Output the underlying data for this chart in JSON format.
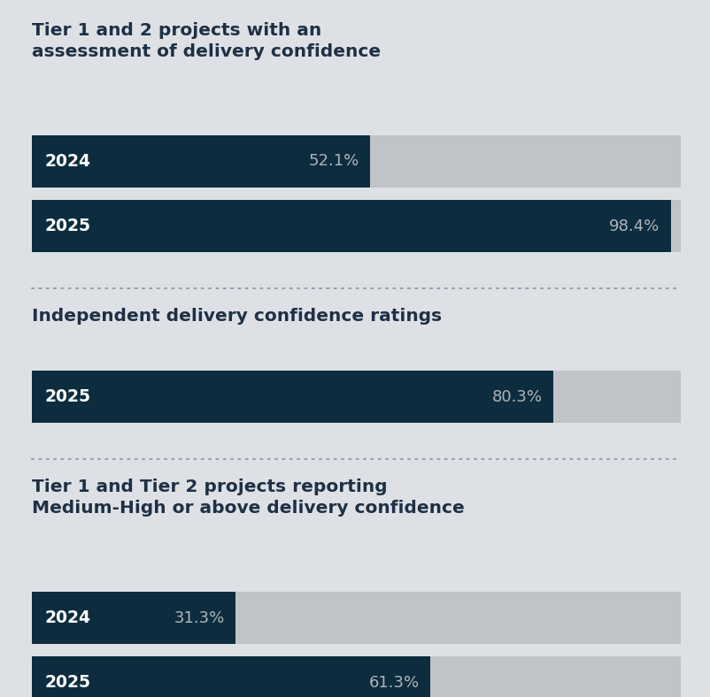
{
  "background_color": "#dde1e6",
  "bar_bg_color": "#c0c4c9",
  "bar_fill_color": "#0d2d3f",
  "text_color_dark": "#1e3044",
  "text_color_light": "#ffffff",
  "text_color_gray": "#b0b4b8",
  "dotted_line_color": "#9aa0a8",
  "sections": [
    {
      "title": "Tier 1 and 2 projects with an\nassessment of delivery confidence",
      "title_lines": 2,
      "bars": [
        {
          "label": "2024",
          "value": 52.1,
          "text": "52.1%",
          "text_inside": true
        },
        {
          "label": "2025",
          "value": 98.4,
          "text": "98.4%",
          "text_inside": true
        }
      ]
    },
    {
      "title": "Independent delivery confidence ratings",
      "title_lines": 1,
      "bars": [
        {
          "label": "2025",
          "value": 80.3,
          "text": "80.3%",
          "text_inside": true
        }
      ]
    },
    {
      "title": "Tier 1 and Tier 2 projects reporting\nMedium-High or above delivery confidence",
      "title_lines": 2,
      "bars": [
        {
          "label": "2024",
          "value": 31.3,
          "text": "31.3%",
          "text_inside": true
        },
        {
          "label": "2025",
          "value": 61.3,
          "text": "61.3%",
          "text_inside": true
        }
      ]
    }
  ],
  "max_value": 100,
  "title_fontsize": 14.5,
  "label_fontsize": 13.5,
  "value_fontsize": 13,
  "dotted_line_color2": "#9aa0a8"
}
